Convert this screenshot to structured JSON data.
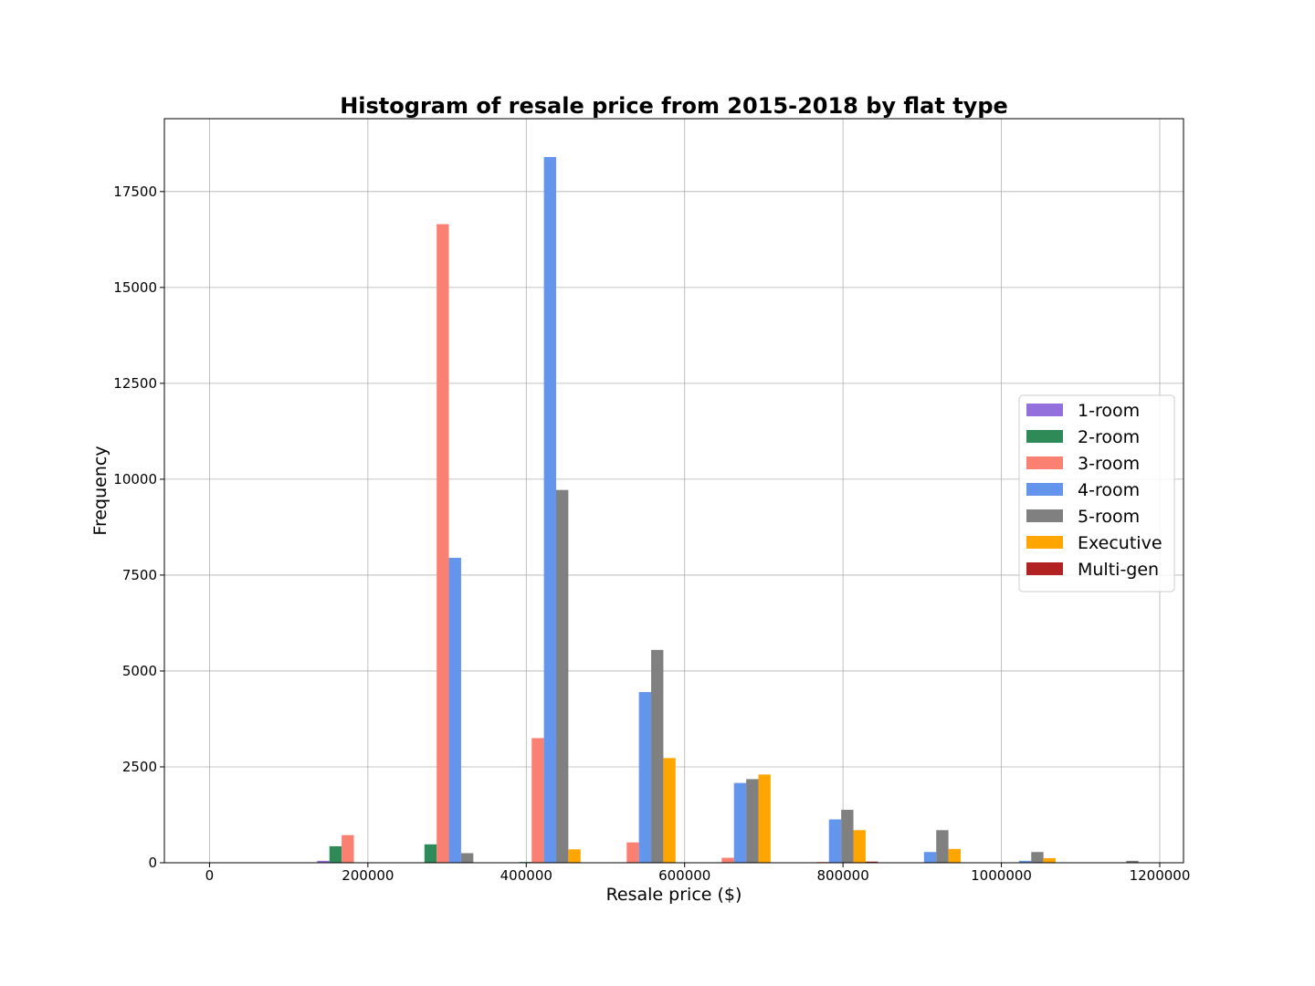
{
  "chart_data": {
    "type": "bar",
    "title": "Histogram of resale price from 2015-2018 by flat type",
    "xlabel": "Resale price ($)",
    "ylabel": "Frequency",
    "xlim": [
      -57000,
      1230000
    ],
    "ylim": [
      0,
      19400
    ],
    "xticks": [
      0,
      200000,
      400000,
      600000,
      800000,
      1000000,
      1200000
    ],
    "xtick_labels": [
      "0",
      "200000",
      "400000",
      "600000",
      "800000",
      "1000000",
      "1200000"
    ],
    "yticks": [
      0,
      2500,
      5000,
      7500,
      10000,
      12500,
      15000,
      17500
    ],
    "ytick_labels": [
      "0",
      "2500",
      "5000",
      "7500",
      "10000",
      "12500",
      "15000",
      "17500"
    ],
    "grid": true,
    "legend_position": "center-right",
    "bin_edges": [
      130000,
      250000,
      370000,
      490000,
      610000,
      730000,
      850000,
      970000,
      1090000,
      1210000
    ],
    "series": [
      {
        "name": "1-room",
        "color": "#9370db",
        "values": [
          50,
          0,
          0,
          0,
          0,
          0,
          0,
          0,
          0
        ]
      },
      {
        "name": "2-room",
        "color": "#2e8b57",
        "values": [
          430,
          480,
          20,
          0,
          0,
          0,
          0,
          0,
          0
        ]
      },
      {
        "name": "3-room",
        "color": "#fa8072",
        "values": [
          720,
          16650,
          3250,
          530,
          130,
          20,
          0,
          0,
          0
        ]
      },
      {
        "name": "4-room",
        "color": "#6495ed",
        "values": [
          0,
          7950,
          18400,
          4450,
          2080,
          1130,
          280,
          50,
          0
        ]
      },
      {
        "name": "5-room",
        "color": "#808080",
        "values": [
          0,
          250,
          9720,
          5550,
          2180,
          1380,
          850,
          280,
          50
        ]
      },
      {
        "name": "Executive",
        "color": "#ffa500",
        "values": [
          0,
          0,
          350,
          2730,
          2300,
          850,
          360,
          120,
          0
        ]
      },
      {
        "name": "Multi-gen",
        "color": "#b22222",
        "values": [
          0,
          0,
          0,
          0,
          0,
          30,
          0,
          0,
          0
        ]
      }
    ]
  }
}
